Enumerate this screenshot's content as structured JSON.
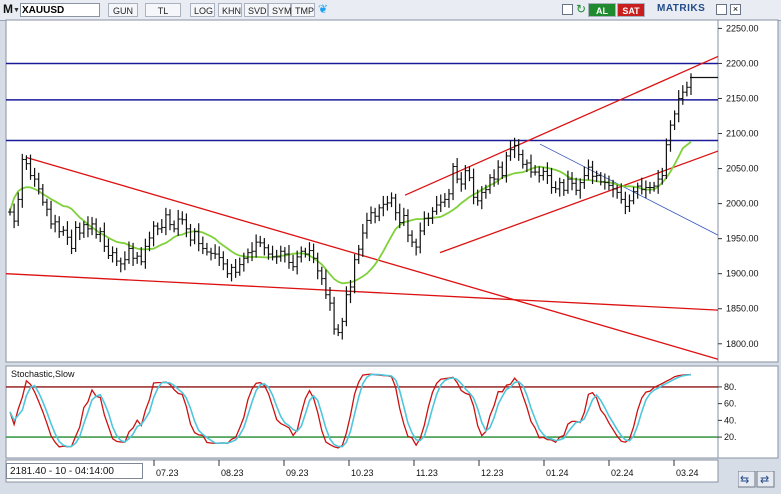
{
  "toolbar": {
    "menu_letter": "M",
    "symbol": "XAUUSD",
    "buttons": [
      "GUN",
      "TL",
      "LOG",
      "KHN",
      "SVD",
      "SYM",
      "TMP"
    ],
    "buy_label": "AL",
    "sell_label": "SAT",
    "brand": "MATRIKS"
  },
  "status": {
    "readout": "2181.40 - 10 - 04:14:00"
  },
  "colors": {
    "bars": "#111111",
    "channel": "#dd1111",
    "hline": "#1a1a99",
    "ma": "#7fd13b",
    "stoch_k": "#cc1111",
    "stoch_d": "#4fc6dc",
    "blue_trend": "#3355bb"
  },
  "chart_data": [
    {
      "type": "ohlc",
      "title": "XAUUSD",
      "x_ticks": [
        "07.23",
        "08.23",
        "09.23",
        "10.23",
        "11.23",
        "12.23",
        "01.24",
        "02.24",
        "03.24"
      ],
      "y_ticks": [
        1800,
        1850,
        1900,
        1950,
        2000,
        2050,
        2100,
        2150,
        2200,
        2250
      ],
      "ylim": [
        1774,
        2262
      ],
      "grid": false,
      "horizontal_levels": [
        2200,
        2148,
        2090,
        2180
      ],
      "closes": [
        1988,
        1975,
        2006,
        2063,
        2057,
        2040,
        2035,
        2021,
        2002,
        1992,
        1971,
        1974,
        1960,
        1962,
        1952,
        1936,
        1966,
        1958,
        1970,
        1964,
        1971,
        1956,
        1960,
        1939,
        1926,
        1930,
        1918,
        1914,
        1920,
        1936,
        1922,
        1925,
        1917,
        1939,
        1951,
        1968,
        1964,
        1966,
        1984,
        1970,
        1964,
        1978,
        1977,
        1964,
        1948,
        1960,
        1943,
        1936,
        1931,
        1929,
        1928,
        1923,
        1914,
        1900,
        1909,
        1902,
        1913,
        1922,
        1930,
        1932,
        1945,
        1944,
        1937,
        1928,
        1924,
        1924,
        1932,
        1928,
        1916,
        1910,
        1924,
        1932,
        1928,
        1933,
        1922,
        1904,
        1893,
        1870,
        1858,
        1821,
        1816,
        1832,
        1870,
        1881,
        1920,
        1935,
        1958,
        1976,
        1987,
        1982,
        1994,
        1999,
        2001,
        2008,
        1987,
        1973,
        1983,
        1955,
        1945,
        1938,
        1961,
        1979,
        1979,
        1989,
        1998,
        2002,
        2006,
        2014,
        2053,
        2035,
        2028,
        2047,
        2037,
        2009,
        2004,
        2016,
        2020,
        2037,
        2035,
        2052,
        2040,
        2068,
        2077,
        2083,
        2070,
        2056,
        2058,
        2045,
        2045,
        2040,
        2046,
        2040,
        2023,
        2021,
        2030,
        2019,
        2035,
        2029,
        2019,
        2030,
        2040,
        2052,
        2039,
        2040,
        2031,
        2030,
        2026,
        2021,
        2016,
        2006,
        1996,
        2004,
        2017,
        2025,
        2020,
        2023,
        2023,
        2025,
        2035,
        2040,
        2084,
        2112,
        2128,
        2150,
        2159,
        2166,
        2180
      ]
    },
    {
      "type": "line",
      "title": "Stochastic,Slow",
      "y_ticks": [
        20,
        40,
        60,
        80
      ],
      "ylim": [
        -5,
        105
      ],
      "horizontal_levels": [
        20,
        80
      ],
      "series": [
        {
          "name": "",
          "values": []
        },
        {
          "name": "",
          "values": []
        }
      ]
    }
  ]
}
